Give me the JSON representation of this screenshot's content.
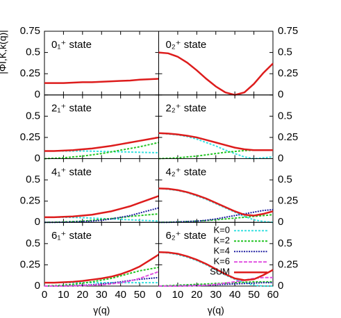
{
  "chart_data": [
    {
      "type": "line",
      "title": "0₁⁺ state",
      "ylabel": "|ΦI,K,k(q)|",
      "x": [
        0,
        5,
        10,
        15,
        20,
        25,
        30,
        35,
        40,
        45,
        50,
        55,
        60
      ],
      "xlim": [
        0,
        60
      ],
      "ylim": [
        0,
        0.75
      ],
      "xticks": [
        0,
        10,
        20,
        30,
        40,
        50
      ],
      "yticks": [
        0,
        0.25,
        0.5,
        0.75
      ],
      "series": [
        {
          "color": "#dd1c1c",
          "values": [
            0.14,
            0.14,
            0.14,
            0.145,
            0.15,
            0.15,
            0.155,
            0.16,
            0.165,
            0.17,
            0.18,
            0.185,
            0.19
          ]
        }
      ]
    },
    {
      "type": "line",
      "title": "0₂⁺ state",
      "x": [
        0,
        5,
        10,
        15,
        20,
        25,
        30,
        35,
        40,
        45,
        50,
        55,
        60
      ],
      "xlim": [
        0,
        60
      ],
      "ylim": [
        0,
        0.75
      ],
      "xticks": [
        0,
        10,
        20,
        30,
        40,
        50,
        60
      ],
      "yticks": [
        0,
        0.25,
        0.5,
        0.75
      ],
      "series": [
        {
          "color": "#dd1c1c",
          "values": [
            0.5,
            0.49,
            0.45,
            0.38,
            0.29,
            0.19,
            0.1,
            0.03,
            0.0,
            0.03,
            0.13,
            0.26,
            0.37
          ]
        }
      ]
    },
    {
      "type": "line",
      "title": "2₁⁺ state",
      "x": [
        0,
        5,
        10,
        15,
        20,
        25,
        30,
        35,
        40,
        45,
        50,
        55,
        60
      ],
      "xlim": [
        0,
        60
      ],
      "ylim": [
        0,
        0.75
      ],
      "xticks": [
        0,
        10,
        20,
        30,
        40,
        50
      ],
      "yticks": [
        0,
        0.25,
        0.5
      ],
      "series": [
        {
          "color": "#38e0e0",
          "values": [
            0.09,
            0.09,
            0.09,
            0.09,
            0.09,
            0.088,
            0.085,
            0.082,
            0.08,
            0.078,
            0.075,
            0.072,
            0.07
          ]
        },
        {
          "color": "#22c422",
          "values": [
            0,
            0.005,
            0.01,
            0.02,
            0.03,
            0.045,
            0.06,
            0.08,
            0.1,
            0.12,
            0.14,
            0.165,
            0.19
          ]
        },
        {
          "color": "#dd1c1c",
          "values": [
            0.09,
            0.09,
            0.095,
            0.1,
            0.11,
            0.12,
            0.135,
            0.15,
            0.17,
            0.19,
            0.21,
            0.23,
            0.25
          ]
        }
      ]
    },
    {
      "type": "line",
      "title": "2₂⁺ state",
      "x": [
        0,
        5,
        10,
        15,
        20,
        25,
        30,
        35,
        40,
        45,
        50,
        55,
        60
      ],
      "xlim": [
        0,
        60
      ],
      "ylim": [
        0,
        0.75
      ],
      "xticks": [
        0,
        10,
        20,
        30,
        40,
        50,
        60
      ],
      "yticks": [
        0,
        0.25,
        0.5
      ],
      "series": [
        {
          "color": "#38e0e0",
          "values": [
            0.3,
            0.29,
            0.28,
            0.26,
            0.23,
            0.19,
            0.15,
            0.1,
            0.06,
            0.02,
            0.0,
            0.01,
            0.02
          ]
        },
        {
          "color": "#22c422",
          "values": [
            0,
            0.005,
            0.01,
            0.02,
            0.03,
            0.045,
            0.06,
            0.075,
            0.085,
            0.095,
            0.1,
            0.1,
            0.1
          ]
        },
        {
          "color": "#dd1c1c",
          "values": [
            0.3,
            0.295,
            0.285,
            0.27,
            0.25,
            0.22,
            0.19,
            0.16,
            0.13,
            0.11,
            0.1,
            0.1,
            0.1
          ]
        }
      ]
    },
    {
      "type": "line",
      "title": "4₁⁺ state",
      "x": [
        0,
        5,
        10,
        15,
        20,
        25,
        30,
        35,
        40,
        45,
        50,
        55,
        60
      ],
      "xlim": [
        0,
        60
      ],
      "ylim": [
        0,
        0.75
      ],
      "xticks": [
        0,
        10,
        20,
        30,
        40,
        50
      ],
      "yticks": [
        0,
        0.25,
        0.5
      ],
      "series": [
        {
          "color": "#38e0e0",
          "values": [
            0.06,
            0.06,
            0.06,
            0.058,
            0.055,
            0.05,
            0.045,
            0.04,
            0.035,
            0.03,
            0.025,
            0.02,
            0.015
          ]
        },
        {
          "color": "#22c422",
          "values": [
            0,
            0.002,
            0.005,
            0.01,
            0.015,
            0.025,
            0.035,
            0.045,
            0.055,
            0.07,
            0.08,
            0.09,
            0.1
          ]
        },
        {
          "color": "#1c1ca0",
          "values": [
            0,
            0,
            0.002,
            0.005,
            0.01,
            0.015,
            0.025,
            0.04,
            0.06,
            0.08,
            0.11,
            0.14,
            0.17
          ]
        },
        {
          "color": "#dd1c1c",
          "values": [
            0.06,
            0.06,
            0.065,
            0.07,
            0.08,
            0.09,
            0.11,
            0.13,
            0.16,
            0.19,
            0.23,
            0.27,
            0.31
          ]
        }
      ]
    },
    {
      "type": "line",
      "title": "4₂⁺ state",
      "x": [
        0,
        5,
        10,
        15,
        20,
        25,
        30,
        35,
        40,
        45,
        50,
        55,
        60
      ],
      "xlim": [
        0,
        60
      ],
      "ylim": [
        0,
        0.75
      ],
      "xticks": [
        0,
        10,
        20,
        30,
        40,
        50,
        60
      ],
      "yticks": [
        0,
        0.25,
        0.5
      ],
      "series": [
        {
          "color": "#38e0e0",
          "values": [
            0.4,
            0.39,
            0.375,
            0.35,
            0.31,
            0.27,
            0.22,
            0.17,
            0.12,
            0.07,
            0.03,
            0.01,
            0.0
          ]
        },
        {
          "color": "#22c422",
          "values": [
            0,
            0.002,
            0.005,
            0.01,
            0.015,
            0.02,
            0.03,
            0.04,
            0.05,
            0.06,
            0.07,
            0.08,
            0.09
          ]
        },
        {
          "color": "#1c1ca0",
          "values": [
            0,
            0,
            0.005,
            0.01,
            0.015,
            0.025,
            0.04,
            0.06,
            0.08,
            0.1,
            0.12,
            0.14,
            0.15
          ]
        },
        {
          "color": "#dd1c1c",
          "values": [
            0.4,
            0.395,
            0.38,
            0.355,
            0.32,
            0.28,
            0.23,
            0.18,
            0.13,
            0.09,
            0.08,
            0.1,
            0.13
          ]
        }
      ]
    },
    {
      "type": "line",
      "title": "6₁⁺ state",
      "xlabel": "γ(q)",
      "x": [
        0,
        5,
        10,
        15,
        20,
        25,
        30,
        35,
        40,
        45,
        50,
        55,
        60
      ],
      "xlim": [
        0,
        60
      ],
      "ylim": [
        0,
        0.75
      ],
      "xticks": [
        0,
        10,
        20,
        30,
        40,
        50
      ],
      "yticks": [
        0,
        0.25,
        0.5
      ],
      "series": [
        {
          "color": "#38e0e0",
          "values": [
            0.04,
            0.04,
            0.04,
            0.04,
            0.04,
            0.04,
            0.04,
            0.04,
            0.04,
            0.04,
            0.04,
            0.04,
            0.04
          ]
        },
        {
          "color": "#22c422",
          "values": [
            0,
            0.005,
            0.01,
            0.02,
            0.035,
            0.05,
            0.07,
            0.09,
            0.12,
            0.15,
            0.18,
            0.2,
            0.22
          ]
        },
        {
          "color": "#1c1ca0",
          "values": [
            0,
            0,
            0.002,
            0.005,
            0.01,
            0.015,
            0.025,
            0.035,
            0.05,
            0.065,
            0.08,
            0.09,
            0.1
          ]
        },
        {
          "color": "#e050e0",
          "values": [
            0,
            0,
            0,
            0.002,
            0.005,
            0.01,
            0.015,
            0.025,
            0.04,
            0.06,
            0.09,
            0.13,
            0.17
          ]
        },
        {
          "color": "#dd1c1c",
          "values": [
            0.04,
            0.04,
            0.045,
            0.05,
            0.06,
            0.075,
            0.09,
            0.11,
            0.14,
            0.18,
            0.23,
            0.3,
            0.37
          ]
        }
      ]
    },
    {
      "type": "line",
      "title": "6₂⁺ state",
      "xlabel": "γ(q)",
      "x": [
        0,
        5,
        10,
        15,
        20,
        25,
        30,
        35,
        40,
        45,
        50,
        55,
        60
      ],
      "xlim": [
        0,
        60
      ],
      "ylim": [
        0,
        0.75
      ],
      "xticks": [
        0,
        10,
        20,
        30,
        40,
        50,
        60
      ],
      "yticks": [
        0,
        0.25,
        0.5
      ],
      "legend": "upper right",
      "series": [
        {
          "name": "K=0",
          "color": "#38e0e0",
          "values": [
            0.4,
            0.39,
            0.37,
            0.34,
            0.3,
            0.25,
            0.19,
            0.13,
            0.08,
            0.04,
            0.01,
            0.0,
            0.0
          ]
        },
        {
          "name": "K=2",
          "color": "#22c422",
          "values": [
            0,
            0.005,
            0.01,
            0.015,
            0.02,
            0.025,
            0.03,
            0.035,
            0.04,
            0.045,
            0.05,
            0.05,
            0.05
          ]
        },
        {
          "name": "K=4",
          "color": "#1c1ca0",
          "values": [
            0,
            0,
            0.002,
            0.005,
            0.008,
            0.01,
            0.015,
            0.02,
            0.025,
            0.03,
            0.035,
            0.04,
            0.04
          ]
        },
        {
          "name": "K=6",
          "color": "#e050e0",
          "values": [
            0,
            0,
            0,
            0.002,
            0.005,
            0.01,
            0.02,
            0.035,
            0.05,
            0.07,
            0.09,
            0.1,
            0.1
          ]
        },
        {
          "name": "SUM",
          "color": "#dd1c1c",
          "values": [
            0.4,
            0.395,
            0.38,
            0.35,
            0.31,
            0.26,
            0.2,
            0.14,
            0.09,
            0.07,
            0.08,
            0.13,
            0.19
          ]
        }
      ]
    }
  ]
}
